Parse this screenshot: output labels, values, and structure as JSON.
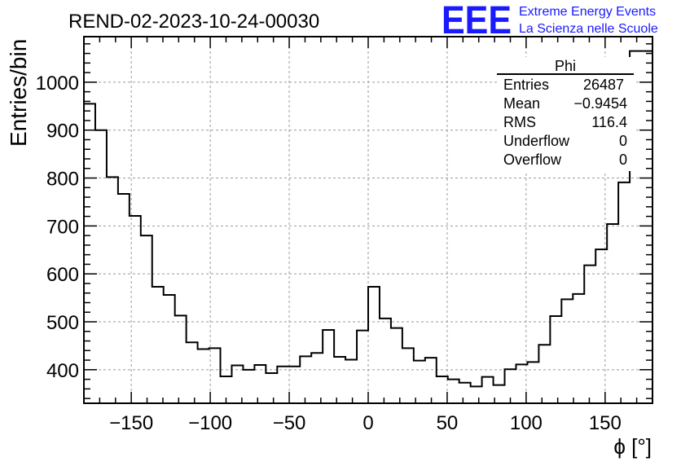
{
  "header": {
    "title": "REND-02-2023-10-24-00030",
    "logo_text": "EEE",
    "logo_line1": "Extreme Energy Events",
    "logo_line2": "La Scienza nelle Scuole",
    "logo_color": "#1a1aff"
  },
  "stats": {
    "name": "Phi",
    "rows": [
      {
        "label": "Entries",
        "value": "26487"
      },
      {
        "label": "Mean",
        "value": "−0.9454"
      },
      {
        "label": "RMS",
        "value": "116.4"
      },
      {
        "label": "Underflow",
        "value": "0"
      },
      {
        "label": "Overflow",
        "value": "0"
      }
    ]
  },
  "chart_data": {
    "type": "histogram",
    "title": "REND-02-2023-10-24-00030",
    "xlabel": "ϕ [°]",
    "ylabel": "Entries/bin",
    "xlim": [
      -180,
      180
    ],
    "ylim": [
      330,
      1095
    ],
    "xticks": [
      -150,
      -100,
      -50,
      0,
      50,
      100,
      150
    ],
    "xtick_labels": [
      "−150",
      "−100",
      "−50",
      "0",
      "50",
      "100",
      "150"
    ],
    "yticks": [
      400,
      500,
      600,
      700,
      800,
      900,
      1000
    ],
    "grid": true,
    "bin_width": 7.2,
    "bin_low_edge": -180,
    "values": [
      955,
      900,
      802,
      767,
      721,
      680,
      573,
      556,
      513,
      457,
      443,
      445,
      386,
      409,
      400,
      410,
      393,
      407,
      407,
      428,
      435,
      483,
      427,
      421,
      482,
      573,
      507,
      487,
      445,
      419,
      425,
      386,
      380,
      373,
      365,
      385,
      368,
      401,
      411,
      416,
      452,
      512,
      547,
      558,
      618,
      651,
      704,
      791,
      1065,
      1065
    ]
  }
}
